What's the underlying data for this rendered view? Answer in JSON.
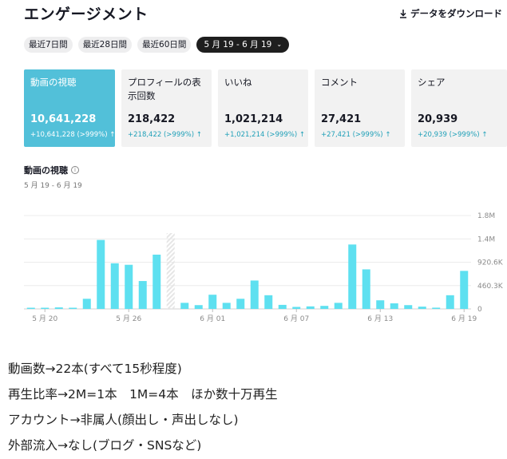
{
  "header": {
    "title": "エンゲージメント",
    "download_label": "データをダウンロード"
  },
  "filters": [
    {
      "label": "最近7日間",
      "active": false
    },
    {
      "label": "最近28日間",
      "active": false
    },
    {
      "label": "最近60日間",
      "active": false
    },
    {
      "label": "5 月 19 - 6 月 19",
      "active": true
    }
  ],
  "cards": [
    {
      "label": "動画の視聴",
      "value": "10,641,228",
      "delta": "+10,641,228 (>999%)"
    },
    {
      "label": "プロフィールの表示回数",
      "value": "218,422",
      "delta": "+218,422 (>999%)"
    },
    {
      "label": "いいね",
      "value": "1,021,214",
      "delta": "+1,021,214 (>999%)"
    },
    {
      "label": "コメント",
      "value": "27,421",
      "delta": "+27,421 (>999%)"
    },
    {
      "label": "シェア",
      "value": "20,939",
      "delta": "+20,939 (>999%)"
    }
  ],
  "chart": {
    "title": "動画の視聴",
    "range": "5 月 19 - 6 月 19"
  },
  "chart_data": {
    "type": "bar",
    "categories": [
      "5/19",
      "5/20",
      "5/21",
      "5/22",
      "5/23",
      "5/24",
      "5/25",
      "5/26",
      "5/27",
      "5/28",
      "5/29",
      "5/30",
      "5/31",
      "6/1",
      "6/2",
      "6/3",
      "6/4",
      "6/5",
      "6/6",
      "6/7",
      "6/8",
      "6/9",
      "6/10",
      "6/11",
      "6/12",
      "6/13",
      "6/14",
      "6/15",
      "6/16",
      "6/17",
      "6/18",
      "6/19"
    ],
    "values": [
      5000,
      15000,
      30000,
      15000,
      200000,
      1360000,
      900000,
      870000,
      550000,
      1070000,
      null,
      120000,
      75000,
      280000,
      120000,
      200000,
      560000,
      270000,
      80000,
      40000,
      50000,
      60000,
      120000,
      1270000,
      780000,
      170000,
      110000,
      75000,
      45000,
      25000,
      270000,
      750000
    ],
    "missing_label_indices": [
      10
    ],
    "x_tick_labels": [
      "5 月 20",
      "5 月 26",
      "6 月 01",
      "6 月 07",
      "6 月 13",
      "6 月 19"
    ],
    "y_tick_labels": [
      "1.8M",
      "1.4M",
      "920.6K",
      "460.3K",
      "0"
    ],
    "y_ticks": [
      1841200,
      1380900,
      920600,
      460300,
      0
    ],
    "ylim": [
      0,
      1841200
    ],
    "bar_color": "#5ee0f0",
    "grid": true
  },
  "notes": [
    "動画数→22本(すべて15秒程度)",
    "再生比率→2M=1本　1M=4本　ほか数十万再生",
    "アカウント→非属人(顔出し・声出しなし)",
    "外部流入→なし(ブログ・SNSなど)"
  ]
}
